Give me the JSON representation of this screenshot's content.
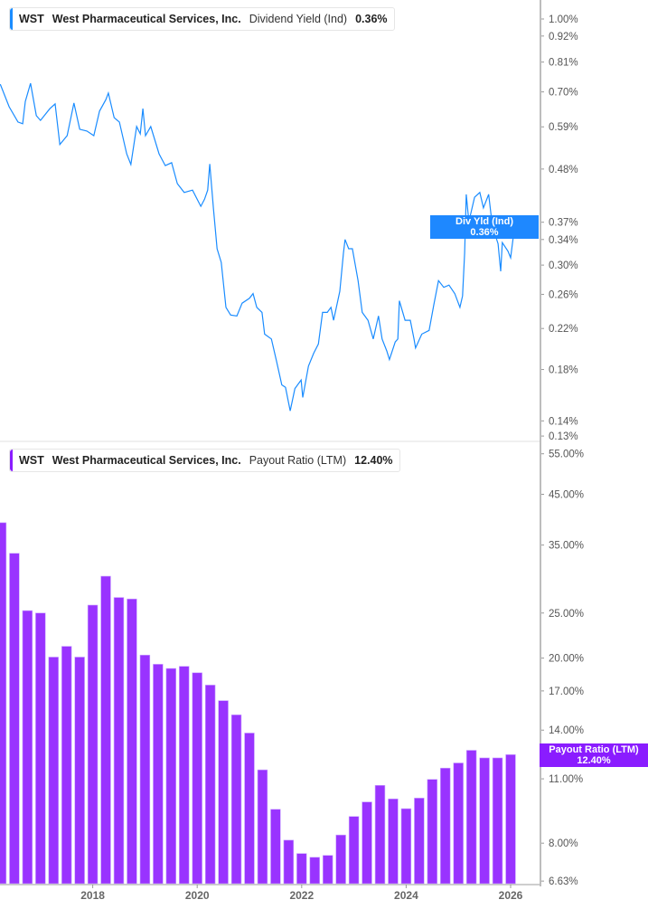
{
  "colors": {
    "yield_line": "#1a8cff",
    "payout_bar": "#9933ff",
    "payout_tag": "#8a1cff",
    "axis": "#bdbdbd"
  },
  "top_legend": {
    "ticker": "WST",
    "company": "West Pharmaceutical Services, Inc.",
    "metric": "Dividend Yield (Ind)",
    "value": "0.36%"
  },
  "bottom_legend": {
    "ticker": "WST",
    "company": "West Pharmaceutical Services, Inc.",
    "metric": "Payout Ratio (LTM)",
    "value": "12.40%"
  },
  "top_tag": {
    "label": "Div Yld (Ind)",
    "value": "0.36%"
  },
  "bottom_tag": {
    "label": "Payout Ratio (LTM)",
    "value": "12.40%"
  },
  "chart_data": [
    {
      "type": "line",
      "series": [
        {
          "name": "Dividend Yield (Ind)",
          "unit": "%"
        }
      ],
      "y_scale": "log",
      "ylim": [
        0.125,
        1.05
      ],
      "xlim": [
        2016.22,
        2026.3
      ],
      "y_ticks": [
        "1.00%",
        "0.92%",
        "0.81%",
        "0.70%",
        "0.59%",
        "0.48%",
        "0.37%",
        "0.34%",
        "0.30%",
        "0.26%",
        "0.22%",
        "0.18%",
        "0.14%",
        "0.13%"
      ],
      "y_tick_values": [
        1.0,
        0.92,
        0.81,
        0.7,
        0.59,
        0.48,
        0.37,
        0.34,
        0.3,
        0.26,
        0.22,
        0.18,
        0.14,
        0.13
      ],
      "x": [
        2016.23,
        2016.4,
        2016.57,
        2016.66,
        2016.71,
        2016.81,
        2016.92,
        2017.0,
        2017.18,
        2017.28,
        2017.37,
        2017.51,
        2017.64,
        2017.75,
        2017.89,
        2018.02,
        2018.13,
        2018.25,
        2018.3,
        2018.41,
        2018.51,
        2018.65,
        2018.73,
        2018.84,
        2018.91,
        2018.96,
        2019.01,
        2019.11,
        2019.27,
        2019.39,
        2019.51,
        2019.62,
        2019.75,
        2019.91,
        2020.07,
        2020.14,
        2020.2,
        2020.24,
        2020.31,
        2020.38,
        2020.46,
        2020.55,
        2020.64,
        2020.76,
        2020.86,
        2021.0,
        2021.07,
        2021.14,
        2021.24,
        2021.29,
        2021.42,
        2021.52,
        2021.62,
        2021.69,
        2021.78,
        2021.87,
        2021.99,
        2022.02,
        2022.13,
        2022.23,
        2022.32,
        2022.4,
        2022.49,
        2022.56,
        2022.61,
        2022.73,
        2022.8,
        2022.83,
        2022.9,
        2022.97,
        2023.08,
        2023.16,
        2023.27,
        2023.37,
        2023.47,
        2023.54,
        2023.63,
        2023.68,
        2023.79,
        2023.84,
        2023.87,
        2023.98,
        2024.08,
        2024.15,
        2024.18,
        2024.3,
        2024.44,
        2024.53,
        2024.62,
        2024.72,
        2024.82,
        2024.93,
        2025.03,
        2025.08,
        2025.12,
        2025.15,
        2025.2,
        2025.31,
        2025.41,
        2025.48,
        2025.58,
        2025.65,
        2025.76,
        2025.81,
        2025.84,
        2025.95,
        2026.0,
        2026.05,
        2026.09,
        2026.16,
        2026.23
      ],
      "y": [
        0.727,
        0.651,
        0.604,
        0.599,
        0.668,
        0.73,
        0.623,
        0.609,
        0.645,
        0.66,
        0.541,
        0.565,
        0.663,
        0.583,
        0.578,
        0.565,
        0.637,
        0.674,
        0.696,
        0.617,
        0.604,
        0.517,
        0.491,
        0.591,
        0.57,
        0.645,
        0.565,
        0.591,
        0.517,
        0.488,
        0.495,
        0.447,
        0.428,
        0.433,
        0.4,
        0.414,
        0.433,
        0.492,
        0.397,
        0.325,
        0.304,
        0.244,
        0.235,
        0.234,
        0.249,
        0.255,
        0.261,
        0.244,
        0.238,
        0.214,
        0.209,
        0.187,
        0.167,
        0.165,
        0.147,
        0.164,
        0.171,
        0.157,
        0.183,
        0.195,
        0.204,
        0.238,
        0.238,
        0.244,
        0.229,
        0.264,
        0.318,
        0.34,
        0.325,
        0.325,
        0.278,
        0.238,
        0.229,
        0.209,
        0.234,
        0.209,
        0.197,
        0.189,
        0.206,
        0.209,
        0.252,
        0.229,
        0.229,
        0.209,
        0.2,
        0.214,
        0.218,
        0.247,
        0.278,
        0.269,
        0.272,
        0.261,
        0.244,
        0.258,
        0.318,
        0.424,
        0.371,
        0.418,
        0.428,
        0.397,
        0.424,
        0.363,
        0.333,
        0.291,
        0.335,
        0.321,
        0.311,
        0.344,
        0.374,
        0.371,
        0.357
      ],
      "last_value_label": "0.36%"
    },
    {
      "type": "bar",
      "series": [
        {
          "name": "Payout Ratio (LTM)",
          "unit": "%"
        }
      ],
      "y_scale": "log",
      "ylim": [
        6.63,
        55
      ],
      "y_ticks": [
        "55.00%",
        "45.00%",
        "35.00%",
        "25.00%",
        "20.00%",
        "17.00%",
        "14.00%",
        "11.00%",
        "8.00%",
        "6.63%"
      ],
      "y_tick_values": [
        55,
        45,
        35,
        25,
        20,
        17,
        14,
        11,
        8,
        6.63
      ],
      "x_ticks": [
        "2018",
        "2020",
        "2022",
        "2024",
        "2026"
      ],
      "x_tick_values": [
        2018,
        2020,
        2022,
        2024,
        2026
      ],
      "categories": [
        "2016Q1",
        "2016Q2",
        "2016Q3",
        "2016Q4",
        "2017Q1",
        "2017Q2",
        "2017Q3",
        "2017Q4",
        "2018Q1",
        "2018Q2",
        "2018Q3",
        "2018Q4",
        "2019Q1",
        "2019Q2",
        "2019Q3",
        "2019Q4",
        "2020Q1",
        "2020Q2",
        "2020Q3",
        "2020Q4",
        "2021Q1",
        "2021Q2",
        "2021Q3",
        "2021Q4",
        "2022Q1",
        "2022Q2",
        "2022Q3",
        "2022Q4",
        "2023Q1",
        "2023Q2",
        "2023Q3",
        "2023Q4",
        "2024Q1",
        "2024Q2",
        "2024Q3",
        "2024Q4",
        "2025Q1",
        "2025Q2",
        "2025Q3",
        "2025Q4"
      ],
      "x": [
        2016.25,
        2016.5,
        2016.75,
        2017.0,
        2017.25,
        2017.5,
        2017.75,
        2018.0,
        2018.25,
        2018.5,
        2018.75,
        2019.0,
        2019.25,
        2019.5,
        2019.75,
        2020.0,
        2020.25,
        2020.5,
        2020.75,
        2021.0,
        2021.25,
        2021.5,
        2021.75,
        2022.0,
        2022.25,
        2022.5,
        2022.75,
        2023.0,
        2023.25,
        2023.5,
        2023.75,
        2024.0,
        2024.25,
        2024.5,
        2024.75,
        2025.0,
        2025.25,
        2025.5,
        2025.75,
        2026.0
      ],
      "values": [
        39.1,
        33.6,
        25.3,
        25.0,
        20.1,
        21.2,
        20.1,
        26.0,
        30.0,
        27.0,
        26.8,
        20.3,
        19.4,
        19.0,
        19.2,
        18.6,
        17.5,
        16.2,
        15.1,
        13.8,
        11.5,
        9.46,
        8.12,
        7.6,
        7.46,
        7.53,
        8.33,
        9.13,
        9.81,
        10.65,
        9.96,
        9.49,
        10.0,
        10.97,
        11.6,
        11.9,
        12.67,
        12.2,
        12.2,
        12.4
      ],
      "last_value_label": "12.40%"
    }
  ]
}
